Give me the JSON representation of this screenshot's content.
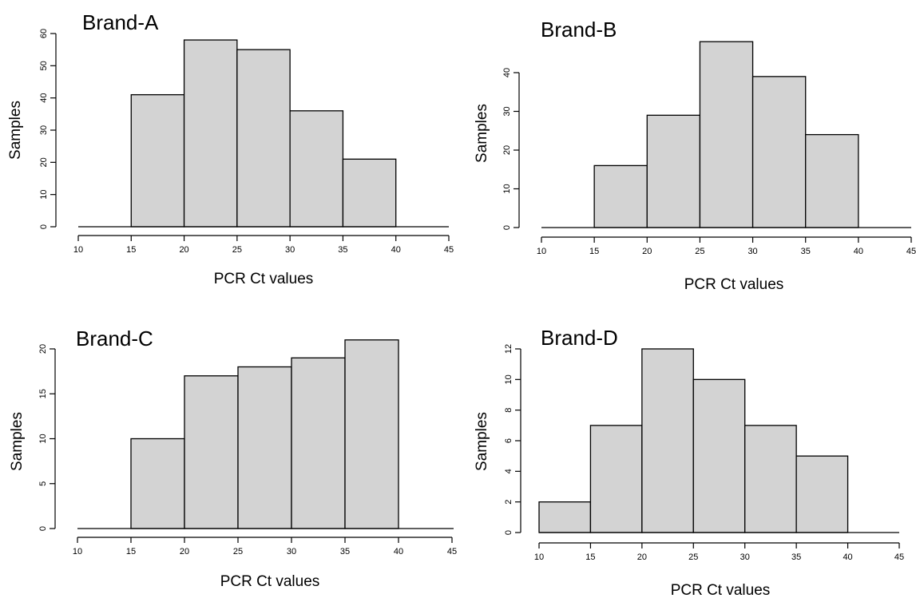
{
  "chart_data": [
    {
      "type": "bar",
      "title": "Brand-A",
      "xlabel": "PCR Ct values",
      "ylabel": "Samples",
      "bin_edges": [
        15,
        20,
        25,
        30,
        35,
        40
      ],
      "values": [
        41,
        58,
        55,
        36,
        21
      ],
      "xlim": [
        10,
        45
      ],
      "ylim": [
        0,
        60
      ],
      "xticks": [
        10,
        15,
        20,
        25,
        30,
        35,
        40,
        45
      ],
      "yticks": [
        0,
        10,
        20,
        30,
        40,
        50,
        60
      ],
      "bar_color": "#d3d3d3"
    },
    {
      "type": "bar",
      "title": "Brand-B",
      "xlabel": "PCR Ct values",
      "ylabel": "Samples",
      "bin_edges": [
        15,
        20,
        25,
        30,
        35,
        40
      ],
      "values": [
        16,
        29,
        48,
        39,
        24
      ],
      "xlim": [
        10,
        45
      ],
      "ylim": [
        0,
        40
      ],
      "xticks": [
        10,
        15,
        20,
        25,
        30,
        35,
        40,
        45
      ],
      "yticks": [
        0,
        10,
        20,
        30,
        40
      ],
      "bar_color": "#d3d3d3"
    },
    {
      "type": "bar",
      "title": "Brand-C",
      "xlabel": "PCR Ct values",
      "ylabel": "Samples",
      "bin_edges": [
        15,
        20,
        25,
        30,
        35,
        40
      ],
      "values": [
        10,
        17,
        18,
        19,
        21
      ],
      "xlim": [
        10,
        45
      ],
      "ylim": [
        0,
        20
      ],
      "xticks": [
        10,
        15,
        20,
        25,
        30,
        35,
        40,
        45
      ],
      "yticks": [
        0,
        5,
        10,
        15,
        20
      ],
      "bar_color": "#d3d3d3"
    },
    {
      "type": "bar",
      "title": "Brand-D",
      "xlabel": "PCR Ct values",
      "ylabel": "Samples",
      "bin_edges": [
        10,
        15,
        20,
        25,
        30,
        35,
        40
      ],
      "values": [
        2,
        7,
        12,
        10,
        7,
        5
      ],
      "xlim": [
        10,
        45
      ],
      "ylim": [
        0,
        12
      ],
      "xticks": [
        10,
        15,
        20,
        25,
        30,
        35,
        40,
        45
      ],
      "yticks": [
        0,
        2,
        4,
        6,
        8,
        10,
        12
      ],
      "bar_color": "#d3d3d3"
    }
  ]
}
